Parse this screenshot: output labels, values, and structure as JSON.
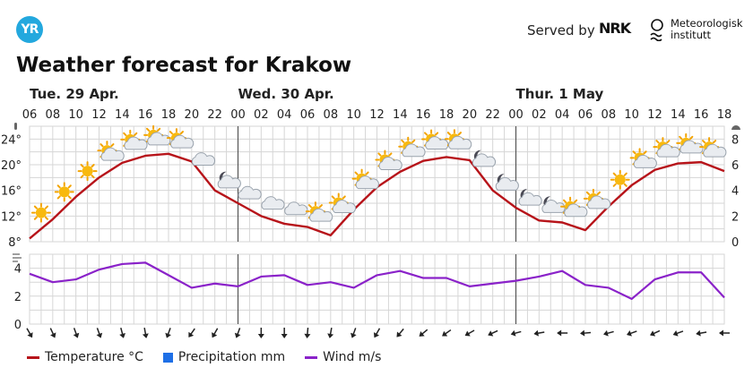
{
  "brand": {
    "logo_text": "YR",
    "served_by": "Served by",
    "nrk": "NRK",
    "met_line1": "Meteorologisk",
    "met_line2": "institutt"
  },
  "title": "Weather forecast for Krakow",
  "colors": {
    "temperature": "#b7141a",
    "precipitation": "#1e6fe6",
    "wind": "#8a22c9",
    "grid": "#d6d6d6",
    "divider": "#555555"
  },
  "chart_data": {
    "type": "line",
    "days": [
      "Tue. 29 Apr.",
      "Wed. 30 Apr.",
      "Thur. 1 May"
    ],
    "hours": [
      "06",
      "08",
      "10",
      "12",
      "14",
      "16",
      "18",
      "20",
      "22",
      "00",
      "02",
      "04",
      "06",
      "08",
      "10",
      "12",
      "14",
      "16",
      "18",
      "20",
      "22",
      "00",
      "02",
      "04",
      "06",
      "08",
      "10",
      "12",
      "14",
      "16",
      "18"
    ],
    "temperature": {
      "unit": "°C",
      "ylim": [
        8,
        26
      ],
      "yticks": [
        "8°",
        "12°",
        "16°",
        "20°",
        "24°"
      ],
      "right_yticks": [
        "0",
        "2",
        "4",
        "6",
        "8"
      ],
      "values": [
        8.5,
        11.5,
        15.0,
        18.0,
        20.3,
        21.4,
        21.7,
        20.5,
        16.0,
        14.0,
        12.0,
        10.8,
        10.3,
        9.0,
        13.0,
        16.5,
        18.9,
        20.6,
        21.2,
        20.7,
        16.0,
        13.3,
        11.3,
        11.0,
        9.8,
        13.5,
        16.8,
        19.2,
        20.2,
        20.4,
        19.0
      ]
    },
    "wind": {
      "unit": "m/s",
      "ylim": [
        0,
        5
      ],
      "yticks": [
        "0",
        "2",
        "4"
      ],
      "values": [
        3.6,
        3.0,
        3.2,
        3.9,
        4.3,
        4.4,
        3.5,
        2.6,
        2.9,
        2.7,
        3.4,
        3.5,
        2.8,
        3.0,
        2.6,
        3.5,
        3.8,
        3.3,
        3.3,
        2.7,
        2.9,
        3.1,
        3.4,
        3.8,
        2.8,
        2.6,
        1.8,
        3.2,
        3.7,
        3.7,
        1.9
      ]
    },
    "weather_icons": [
      "sun",
      "sun",
      "sun",
      "partly-cloudy-day",
      "partly-cloudy-day",
      "partly-cloudy-day",
      "partly-cloudy-day",
      "cloudy",
      "partly-cloudy-night",
      "cloudy",
      "cloudy",
      "cloudy",
      "partly-cloudy-day",
      "partly-cloudy-day",
      "partly-cloudy-day",
      "partly-cloudy-day",
      "partly-cloudy-day",
      "partly-cloudy-day",
      "partly-cloudy-day",
      "partly-cloudy-night",
      "partly-cloudy-night",
      "partly-cloudy-night",
      "partly-cloudy-night",
      "partly-cloudy-day",
      "partly-cloudy-day",
      "sun",
      "partly-cloudy-day",
      "partly-cloudy-day",
      "partly-cloudy-day",
      "partly-cloudy-day"
    ],
    "wind_directions_deg": [
      60,
      65,
      70,
      70,
      75,
      80,
      110,
      125,
      120,
      110,
      90,
      90,
      95,
      100,
      110,
      120,
      130,
      140,
      145,
      150,
      155,
      165,
      170,
      180,
      175,
      165,
      160,
      155,
      160,
      170,
      180
    ],
    "legend": [
      "Temperature °C",
      "Precipitation mm",
      "Wind m/s"
    ]
  }
}
